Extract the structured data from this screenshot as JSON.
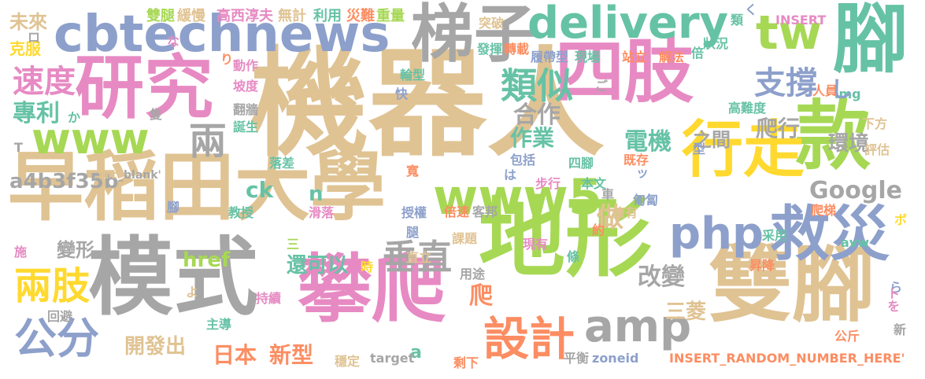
{
  "palette": {
    "tan": "#e0c393",
    "gray": "#a6a6a6",
    "pink": "#e78ac3",
    "green": "#a6d854",
    "blue": "#8da0cb",
    "teal": "#66c2a5",
    "orange": "#fc8d62",
    "yellow": "#ffd92f"
  },
  "words": [
    {
      "text": "機器人",
      "color": "tan"
    },
    {
      "text": "早稻田大學",
      "color": "tan"
    },
    {
      "text": "模式",
      "color": "gray"
    },
    {
      "text": "地形",
      "color": "green"
    },
    {
      "text": "四肢",
      "color": "pink"
    },
    {
      "text": "研究",
      "color": "pink"
    },
    {
      "text": "雙腳",
      "color": "tan"
    },
    {
      "text": "攀爬",
      "color": "pink"
    },
    {
      "text": "cbtechnews",
      "color": "blue"
    },
    {
      "text": "www",
      "color": "green"
    },
    {
      "text": "www5",
      "color": "green"
    },
    {
      "text": "款",
      "color": "green"
    },
    {
      "text": "梯子",
      "color": "gray"
    },
    {
      "text": "delivery",
      "color": "teal"
    },
    {
      "text": "tw",
      "color": "green"
    },
    {
      "text": "腳",
      "color": "teal"
    },
    {
      "text": "行走",
      "color": "yellow"
    },
    {
      "text": "救災",
      "color": "blue"
    },
    {
      "text": "php",
      "color": "blue"
    },
    {
      "text": "amp",
      "color": "gray"
    },
    {
      "text": "設計",
      "color": "orange"
    },
    {
      "text": "兩肢",
      "color": "yellow"
    },
    {
      "text": "公分",
      "color": "blue"
    },
    {
      "text": "垂直",
      "color": "gray"
    },
    {
      "text": "類似",
      "color": "teal"
    },
    {
      "text": "支撐",
      "color": "blue"
    },
    {
      "text": "速度",
      "color": "pink"
    },
    {
      "text": "專利",
      "color": "teal"
    },
    {
      "text": "兩",
      "color": "gray"
    },
    {
      "text": "合作",
      "color": "gray"
    },
    {
      "text": "作業",
      "color": "teal"
    },
    {
      "text": "電機",
      "color": "teal"
    },
    {
      "text": "之間",
      "color": "gray"
    },
    {
      "text": "爬行",
      "color": "gray"
    },
    {
      "text": "環境",
      "color": "gray"
    },
    {
      "text": "Google",
      "color": "gray"
    },
    {
      "text": "ck",
      "color": "teal"
    },
    {
      "text": "n",
      "color": "teal"
    },
    {
      "text": "做",
      "color": "tan"
    },
    {
      "text": "a4b3f35b",
      "color": "gray"
    },
    {
      "text": "變形",
      "color": "gray"
    },
    {
      "text": "還可以",
      "color": "teal"
    },
    {
      "text": "href",
      "color": "green"
    },
    {
      "text": "改變",
      "color": "gray"
    },
    {
      "text": "三菱",
      "color": "tan"
    },
    {
      "text": "開發出",
      "color": "tan"
    },
    {
      "text": "日本",
      "color": "orange"
    },
    {
      "text": "新型",
      "color": "orange"
    },
    {
      "text": "a",
      "color": "teal"
    },
    {
      "text": "爬",
      "color": "orange"
    },
    {
      "text": "未來",
      "color": "tan"
    },
    {
      "text": "克服",
      "color": "yellow"
    },
    {
      "text": "雙腿",
      "color": "green"
    },
    {
      "text": "緩慢",
      "color": "tan"
    },
    {
      "text": "高西淳夫",
      "color": "pink"
    },
    {
      "text": "無計",
      "color": "tan"
    },
    {
      "text": "利用",
      "color": "teal"
    },
    {
      "text": "災難",
      "color": "orange"
    },
    {
      "text": "重量",
      "color": "green"
    },
    {
      "text": "突破",
      "color": "tan"
    },
    {
      "text": "發揮",
      "color": "teal"
    },
    {
      "text": "轉載",
      "color": "orange"
    },
    {
      "text": "履帶型",
      "color": "blue"
    },
    {
      "text": "現場",
      "color": "teal"
    },
    {
      "text": "站立",
      "color": "orange"
    },
    {
      "text": "解法",
      "color": "orange"
    },
    {
      "text": "倍",
      "color": "teal"
    },
    {
      "text": "狀況",
      "color": "teal"
    },
    {
      "text": "類",
      "color": "teal"
    },
    {
      "text": "く",
      "color": "blue"
    },
    {
      "text": "INSERT",
      "color": "pink"
    },
    {
      "text": "ロ",
      "color": "gray"
    },
    {
      "text": "な",
      "color": "pink"
    },
    {
      "text": "り",
      "color": "orange"
    },
    {
      "text": "動作",
      "color": "pink"
    },
    {
      "text": "坡度",
      "color": "pink"
    },
    {
      "text": "翻牆",
      "color": "gray"
    },
    {
      "text": "誕生",
      "color": "teal"
    },
    {
      "text": "輪型",
      "color": "teal"
    },
    {
      "text": "快",
      "color": "blue"
    },
    {
      "text": "隻",
      "color": "gray"
    },
    {
      "text": "か",
      "color": "teal"
    },
    {
      "text": "ご",
      "color": "gray"
    },
    {
      "text": "高難度",
      "color": "teal"
    },
    {
      "text": "人員",
      "color": "orange"
    },
    {
      "text": "img",
      "color": "teal"
    },
    {
      "text": "し",
      "color": "blue"
    },
    {
      "text": "下方",
      "color": "tan"
    },
    {
      "text": "T",
      "color": "gray"
    },
    {
      "text": "src",
      "color": "tan"
    },
    {
      "text": "_blank'",
      "color": "gray"
    },
    {
      "text": "落差",
      "color": "teal"
    },
    {
      "text": "寬",
      "color": "orange"
    },
    {
      "text": "包括",
      "color": "blue"
    },
    {
      "text": "は",
      "color": "blue"
    },
    {
      "text": "四腳",
      "color": "teal"
    },
    {
      "text": "步行",
      "color": "pink"
    },
    {
      "text": "本文",
      "color": "teal"
    },
    {
      "text": "既存",
      "color": "orange"
    },
    {
      "text": "ッ",
      "color": "blue"
    },
    {
      "text": "型",
      "color": "blue"
    },
    {
      "text": "評估",
      "color": "tan"
    },
    {
      "text": "授權",
      "color": "blue"
    },
    {
      "text": "倍速",
      "color": "orange"
    },
    {
      "text": "客邦",
      "color": "gray"
    },
    {
      "text": "車",
      "color": "gray"
    },
    {
      "text": "匍匐",
      "color": "blue"
    },
    {
      "text": "爬梯",
      "color": "orange"
    },
    {
      "text": "擁有",
      "color": "tan"
    },
    {
      "text": "ボ",
      "color": "yellow"
    },
    {
      "text": "腳",
      "color": "blue"
    },
    {
      "text": "教授",
      "color": "teal"
    },
    {
      "text": "滑落",
      "color": "pink"
    },
    {
      "text": "腿",
      "color": "blue"
    },
    {
      "text": "采用",
      "color": "teal"
    },
    {
      "text": "avw",
      "color": "teal"
    },
    {
      "text": "施",
      "color": "pink"
    },
    {
      "text": "三",
      "color": "green"
    },
    {
      "text": "直立",
      "color": "tan"
    },
    {
      "text": "課題",
      "color": "tan"
    },
    {
      "text": "現有",
      "color": "pink"
    },
    {
      "text": "約",
      "color": "orange"
    },
    {
      "text": "昇降",
      "color": "orange"
    },
    {
      "text": "條",
      "color": "teal"
    },
    {
      "text": "用途",
      "color": "gray"
    },
    {
      "text": "ら",
      "color": "blue"
    },
    {
      "text": "時",
      "color": "yellow"
    },
    {
      "text": "よ",
      "color": "tan"
    },
    {
      "text": "持續",
      "color": "pink"
    },
    {
      "text": "主導",
      "color": "teal"
    },
    {
      "text": "回避",
      "color": "gray"
    },
    {
      "text": "トを",
      "color": "pink"
    },
    {
      "text": "新",
      "color": "gray"
    },
    {
      "text": "穩定",
      "color": "tan"
    },
    {
      "text": "target",
      "color": "gray"
    },
    {
      "text": "剩下",
      "color": "orange"
    },
    {
      "text": "平衡",
      "color": "gray"
    },
    {
      "text": "zoneid",
      "color": "blue"
    },
    {
      "text": "INSERT_RANDOM_NUMBER_HERE'",
      "color": "orange"
    },
    {
      "text": "公斤",
      "color": "orange"
    }
  ]
}
